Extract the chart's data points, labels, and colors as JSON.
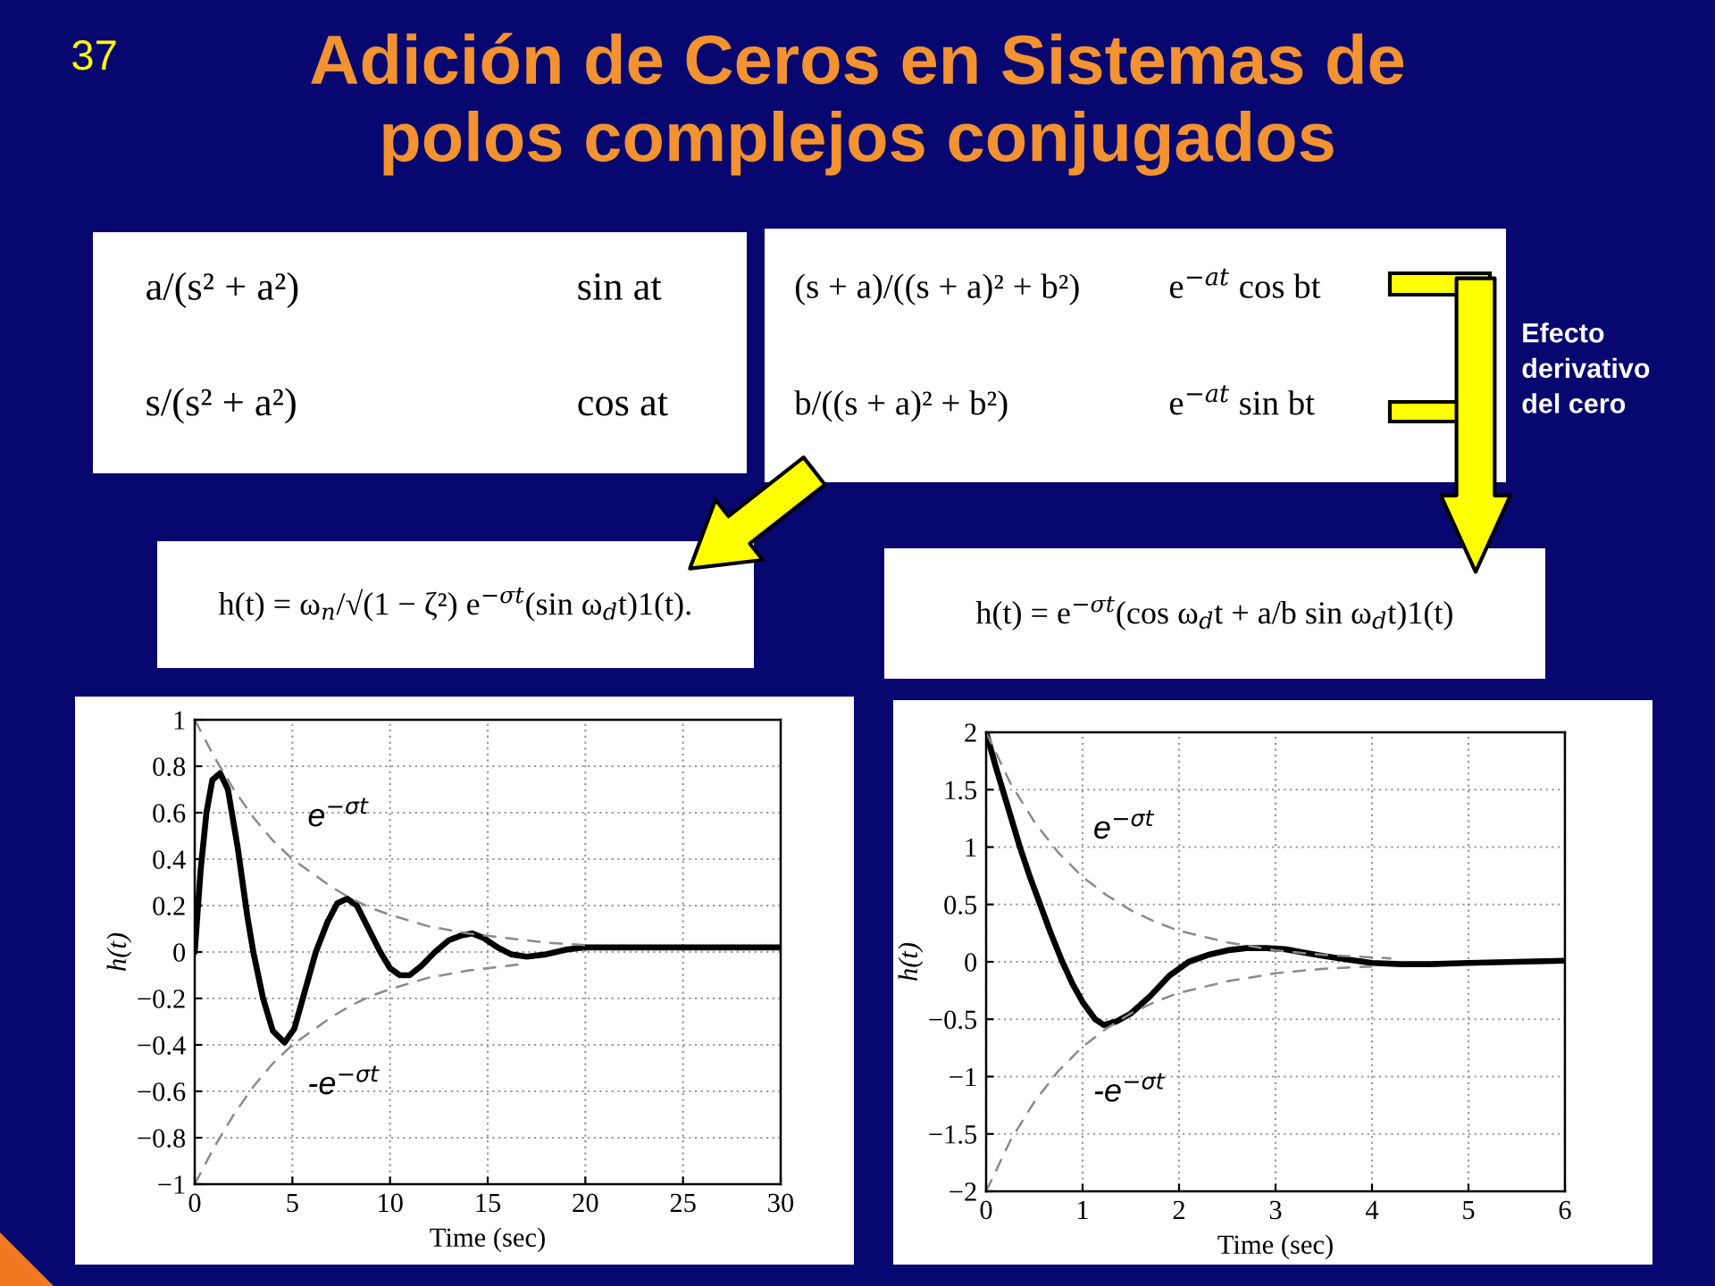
{
  "chart_data": [
    {
      "type": "other",
      "title": "Adición de Ceros en Sistemas de\npolos complejos conjugados",
      "annotations": [
        "37"
      ]
    },
    {
      "type": "other",
      "annotations": [
        "a/(s² + a²)",
        "sin at",
        "s/(s² + a²)",
        "cos at"
      ]
    },
    {
      "type": "other",
      "annotations": [
        "(s + a)/((s + a)² + b²)",
        "e$^{−at}$ cos bt",
        "b/((s + a)² + b²)",
        "e$^{−at}$ sin bt"
      ]
    },
    {
      "type": "other",
      "annotations": [
        "Efecto\nderivativo\ndel cero"
      ]
    },
    {
      "type": "other",
      "annotations": [
        "h(t) = ω$_{n}$/√(1 − ζ²) e$^{−σt}$(sin ω$_{d}$t)1(t)."
      ]
    },
    {
      "type": "other",
      "annotations": [
        "h(t) = e$^{−σt}$(cos ω$_{d}$t + a/b sin ω$_{d}$t)1(t)"
      ]
    },
    {
      "type": "line",
      "xlabel": "Time (sec)",
      "ylabel": "h(t)",
      "xlim": [
        0,
        30
      ],
      "ylim": [
        -1,
        1
      ],
      "xticks": [
        0,
        5,
        10,
        15,
        20,
        25,
        30
      ],
      "yticks": [
        {
          "value": -1,
          "label": "−1"
        },
        {
          "value": -0.8,
          "label": "−0.8"
        },
        {
          "value": -0.6,
          "label": "−0.6"
        },
        {
          "value": -0.4,
          "label": "−0.4"
        },
        {
          "value": -0.2,
          "label": "−0.2"
        },
        0,
        0.2,
        0.4,
        0.6,
        0.8,
        1
      ],
      "grid": true,
      "series": [
        {
          "color": "#000000",
          "line_style": "solid",
          "x": [
            0,
            0.3,
            0.6,
            0.9,
            1.3,
            1.7,
            2.2,
            2.7,
            3.0,
            3.5,
            4.0,
            4.6,
            5.1,
            5.6,
            6.2,
            6.8,
            7.3,
            7.8,
            8.3,
            8.9,
            9.5,
            10.0,
            10.5,
            11.0,
            11.6,
            12.3,
            13.0,
            13.6,
            14.2,
            14.8,
            15.5,
            16.2,
            17.0,
            18.0,
            19.0,
            20.0,
            21.0,
            22.5,
            25.0,
            27.5,
            30.0
          ],
          "values": [
            0,
            0.35,
            0.6,
            0.74,
            0.77,
            0.7,
            0.45,
            0.15,
            0.0,
            -0.2,
            -0.34,
            -0.39,
            -0.33,
            -0.18,
            0.0,
            0.13,
            0.21,
            0.23,
            0.2,
            0.1,
            0.0,
            -0.07,
            -0.1,
            -0.1,
            -0.06,
            0.0,
            0.05,
            0.07,
            0.08,
            0.06,
            0.02,
            -0.01,
            -0.02,
            -0.01,
            0.01,
            0.02,
            0.02,
            0.02,
            0.02,
            0.02,
            0.02
          ]
        },
        {
          "name": "e$^{−σt}$",
          "color": "#8a8a8a",
          "line_style": "dashed",
          "x": [
            0,
            1,
            2,
            3,
            4,
            5,
            6,
            7,
            8,
            9,
            10,
            12,
            14,
            16,
            18,
            20
          ],
          "values": [
            1,
            0.84,
            0.7,
            0.58,
            0.48,
            0.4,
            0.34,
            0.28,
            0.23,
            0.19,
            0.16,
            0.11,
            0.08,
            0.06,
            0.04,
            0.03
          ]
        },
        {
          "name": "-e$^{−σt}$",
          "color": "#8a8a8a",
          "line_style": "dashed",
          "x": [
            0,
            1,
            2,
            3,
            4,
            5,
            6,
            7,
            8,
            9,
            10,
            12,
            14,
            16,
            17
          ],
          "values": [
            -1,
            -0.84,
            -0.7,
            -0.58,
            -0.48,
            -0.4,
            -0.34,
            -0.28,
            -0.23,
            -0.19,
            -0.16,
            -0.11,
            -0.08,
            -0.06,
            -0.05
          ]
        }
      ]
    },
    {
      "type": "line",
      "xlabel": "Time (sec)",
      "ylabel": "h(t)",
      "xlim": [
        0,
        6
      ],
      "ylim": [
        -2,
        2
      ],
      "xticks": [
        0,
        1,
        2,
        3,
        4,
        5,
        6
      ],
      "yticks": [
        {
          "value": -2,
          "label": "−2"
        },
        {
          "value": -1.5,
          "label": "−1.5"
        },
        {
          "value": -1,
          "label": "−1"
        },
        {
          "value": -0.5,
          "label": "−0.5"
        },
        0,
        0.5,
        1,
        1.5,
        2
      ],
      "grid": true,
      "series": [
        {
          "color": "#000000",
          "line_style": "solid",
          "x": [
            0,
            0.1,
            0.2,
            0.35,
            0.45,
            0.56,
            0.67,
            0.79,
            0.9,
            1.0,
            1.13,
            1.22,
            1.35,
            1.5,
            1.7,
            1.9,
            2.1,
            2.3,
            2.5,
            2.7,
            2.9,
            3.1,
            3.3,
            3.5,
            3.75,
            4.0,
            4.3,
            4.6,
            5.0,
            5.5,
            6.0
          ],
          "values": [
            2,
            1.7,
            1.42,
            1.0,
            0.75,
            0.5,
            0.25,
            0,
            -0.2,
            -0.35,
            -0.5,
            -0.55,
            -0.52,
            -0.45,
            -0.3,
            -0.12,
            0.0,
            0.06,
            0.1,
            0.12,
            0.12,
            0.11,
            0.08,
            0.05,
            0.02,
            -0.01,
            -0.02,
            -0.02,
            -0.01,
            0.0,
            0.01
          ]
        },
        {
          "name": "e$^{−σt}$",
          "color": "#8a8a8a",
          "line_style": "dashed",
          "x": [
            0,
            0.25,
            0.5,
            0.75,
            1,
            1.25,
            1.5,
            1.75,
            2,
            2.5,
            3,
            3.5,
            4.2
          ],
          "values": [
            2,
            1.56,
            1.22,
            0.95,
            0.74,
            0.58,
            0.45,
            0.35,
            0.27,
            0.17,
            0.1,
            0.06,
            0.03
          ]
        },
        {
          "name": "-e$^{−σt}$",
          "color": "#8a8a8a",
          "line_style": "dashed",
          "x": [
            0,
            0.25,
            0.5,
            0.75,
            1,
            1.25,
            1.5,
            1.75,
            2,
            2.5,
            3,
            3.5,
            4
          ],
          "values": [
            -2,
            -1.56,
            -1.22,
            -0.95,
            -0.74,
            -0.58,
            -0.45,
            -0.35,
            -0.27,
            -0.17,
            -0.1,
            -0.06,
            -0.04
          ]
        }
      ]
    }
  ]
}
